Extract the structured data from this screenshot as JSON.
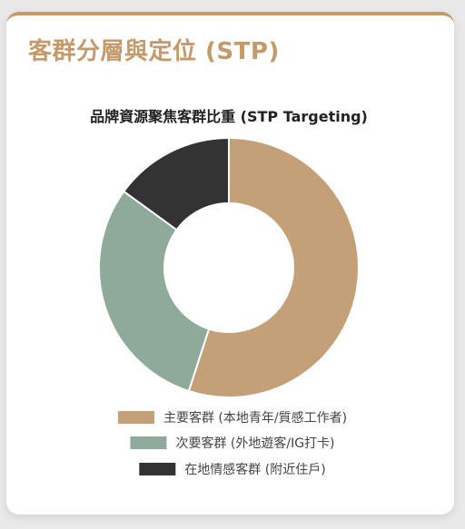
{
  "card": {
    "title": "客群分層與定位 (STP)",
    "accent_color": "#c49a6c"
  },
  "chart_data": {
    "type": "pie",
    "donut": true,
    "title": "品牌資源聚焦客群比重 (STP Targeting)",
    "categories": [
      "主要客群 (本地青年/質感工作者)",
      "次要客群 (外地遊客/IG打卡)",
      "在地情感客群 (附近住戶)"
    ],
    "values": [
      55,
      30,
      15
    ],
    "colors": [
      "#c4a078",
      "#8fa99b",
      "#333333"
    ],
    "legend_position": "bottom"
  }
}
